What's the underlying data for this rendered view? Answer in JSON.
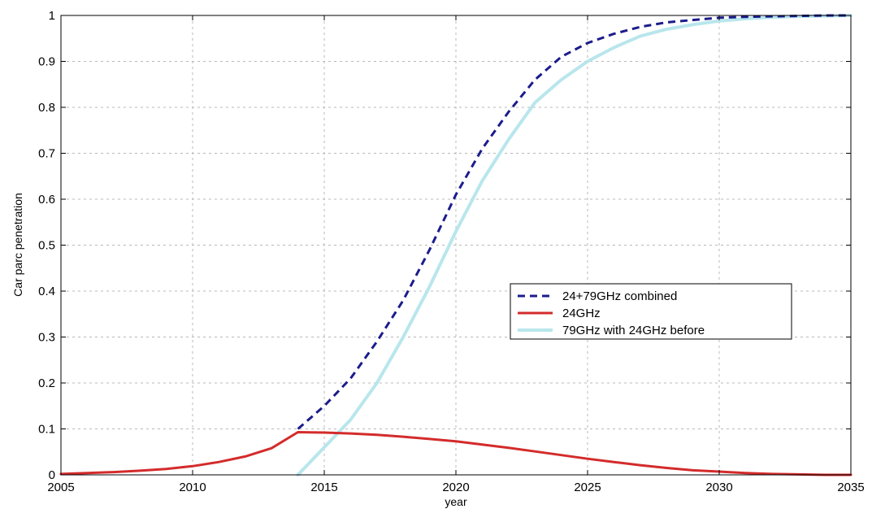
{
  "chart_data": {
    "type": "line",
    "title": "",
    "xlabel": "year",
    "ylabel": "Car parc penetration",
    "xlim": [
      2005,
      2035
    ],
    "ylim": [
      0,
      1
    ],
    "xticks": [
      2005,
      2010,
      2015,
      2020,
      2025,
      2030,
      2035
    ],
    "yticks": [
      0,
      0.1,
      0.2,
      0.3,
      0.4,
      0.5,
      0.6,
      0.7,
      0.8,
      0.9,
      1
    ],
    "ytick_labels": [
      "0",
      "0.1",
      "0.2",
      "0.3",
      "0.4",
      "0.5",
      "0.6",
      "0.7",
      "0.8",
      "0.9",
      "1"
    ],
    "grid": true,
    "legend_position": "center-right",
    "series": [
      {
        "name": "24+79GHz combined",
        "color": "#1c1c8c",
        "style": "dashed",
        "x": [
          2014,
          2015,
          2016,
          2017,
          2018,
          2019,
          2020,
          2021,
          2022,
          2023,
          2024,
          2025,
          2026,
          2027,
          2028,
          2029,
          2030,
          2031,
          2032,
          2033,
          2034,
          2035
        ],
        "y": [
          0.1,
          0.15,
          0.21,
          0.29,
          0.38,
          0.49,
          0.61,
          0.71,
          0.79,
          0.86,
          0.91,
          0.94,
          0.96,
          0.975,
          0.985,
          0.99,
          0.995,
          0.997,
          0.998,
          0.999,
          1.0,
          1.0
        ]
      },
      {
        "name": "24GHz",
        "color": "#d42b2b",
        "style": "solid",
        "x": [
          2005,
          2006,
          2007,
          2008,
          2009,
          2010,
          2011,
          2012,
          2013,
          2014,
          2015,
          2016,
          2017,
          2018,
          2019,
          2020,
          2021,
          2022,
          2023,
          2024,
          2025,
          2026,
          2027,
          2028,
          2029,
          2030,
          2031,
          2032,
          2033,
          2034,
          2035
        ],
        "y": [
          0.002,
          0.004,
          0.006,
          0.009,
          0.013,
          0.019,
          0.028,
          0.04,
          0.058,
          0.093,
          0.092,
          0.09,
          0.087,
          0.083,
          0.078,
          0.073,
          0.066,
          0.059,
          0.051,
          0.043,
          0.035,
          0.028,
          0.021,
          0.015,
          0.01,
          0.007,
          0.004,
          0.002,
          0.001,
          0.0,
          0.0
        ]
      },
      {
        "name": "79GHz with 24GHz before",
        "color": "#b8e6ec",
        "style": "solid",
        "x": [
          2014,
          2015,
          2016,
          2017,
          2018,
          2019,
          2020,
          2021,
          2022,
          2023,
          2024,
          2025,
          2026,
          2027,
          2028,
          2029,
          2030,
          2031,
          2032,
          2033,
          2034,
          2035
        ],
        "y": [
          0.0,
          0.06,
          0.12,
          0.2,
          0.3,
          0.41,
          0.53,
          0.64,
          0.73,
          0.81,
          0.86,
          0.9,
          0.93,
          0.955,
          0.97,
          0.98,
          0.988,
          0.993,
          0.996,
          0.998,
          0.999,
          1.0
        ]
      }
    ]
  }
}
